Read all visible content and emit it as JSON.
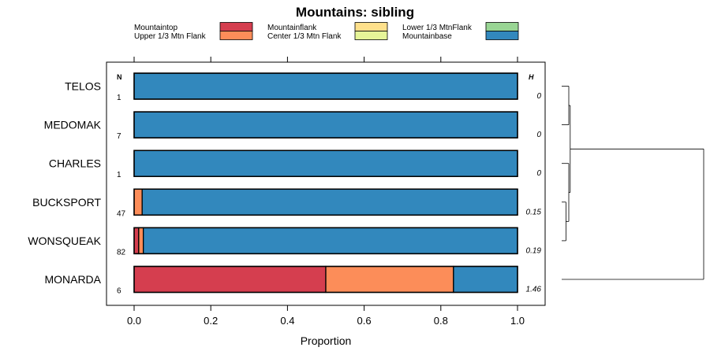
{
  "chart_data": {
    "type": "bar",
    "orientation": "horizontal",
    "stacked": true,
    "title": "Mountains: sibling",
    "xlabel": "Proportion",
    "ylabel": "",
    "xlim": [
      0,
      1
    ],
    "xticks": [
      0.0,
      0.2,
      0.4,
      0.6,
      0.8,
      1.0
    ],
    "xtick_labels": [
      "0.0",
      "0.2",
      "0.4",
      "0.6",
      "0.8",
      "1.0"
    ],
    "column_headers": {
      "n": "N",
      "h": "H"
    },
    "legend": [
      {
        "name": "Mountaintop",
        "color": "#d53e4f"
      },
      {
        "name": "Upper 1/3 Mtn Flank",
        "color": "#fc8d59"
      },
      {
        "name": "Mountainflank",
        "color": "#fee08b"
      },
      {
        "name": "Center 1/3 Mtn Flank",
        "color": "#e6f598"
      },
      {
        "name": "Lower 1/3 MtnFlank",
        "color": "#99d594"
      },
      {
        "name": "Mountainbase",
        "color": "#3288bd"
      }
    ],
    "categories": [
      "TELOS",
      "MEDOMAK",
      "CHARLES",
      "BUCKSPORT",
      "WONSQUEAK",
      "MONARDA"
    ],
    "n": [
      "1",
      "7",
      "1",
      "47",
      "82",
      "6"
    ],
    "h": [
      "0",
      "0",
      "0",
      "0.15",
      "0.19",
      "1.46"
    ],
    "series": [
      {
        "name": "Mountaintop",
        "values": [
          0,
          0,
          0,
          0,
          0.012,
          0.5
        ]
      },
      {
        "name": "Upper 1/3 Mtn Flank",
        "values": [
          0,
          0,
          0,
          0.021,
          0.012,
          0.333
        ]
      },
      {
        "name": "Mountainflank",
        "values": [
          0,
          0,
          0,
          0,
          0,
          0
        ]
      },
      {
        "name": "Center 1/3 Mtn Flank",
        "values": [
          0,
          0,
          0,
          0,
          0,
          0
        ]
      },
      {
        "name": "Lower 1/3 MtnFlank",
        "values": [
          0,
          0,
          0,
          0,
          0,
          0
        ]
      },
      {
        "name": "Mountainbase",
        "values": [
          1,
          1,
          1,
          0.979,
          0.976,
          0.167
        ]
      }
    ],
    "dendrogram": {
      "leaves": [
        "TELOS",
        "MEDOMAK",
        "CHARLES",
        "BUCKSPORT",
        "WONSQUEAK",
        "MONARDA"
      ],
      "merges": [
        {
          "left": "TELOS",
          "right": "MEDOMAK",
          "height": 0.05
        },
        {
          "left": "BUCKSPORT",
          "right": "WONSQUEAK",
          "height": 0.03
        },
        {
          "left": "CHARLES",
          "right": "BUCKSPORT+WONSQUEAK",
          "height": 0.05
        },
        {
          "left": "TELOS+MEDOMAK",
          "right": "CHARLES+BUCKSPORT+WONSQUEAK",
          "height": 0.06
        },
        {
          "left": "TELOS+MEDOMAK+CHARLES+BUCKSPORT+WONSQUEAK",
          "right": "MONARDA",
          "height": 1.0
        }
      ]
    }
  }
}
